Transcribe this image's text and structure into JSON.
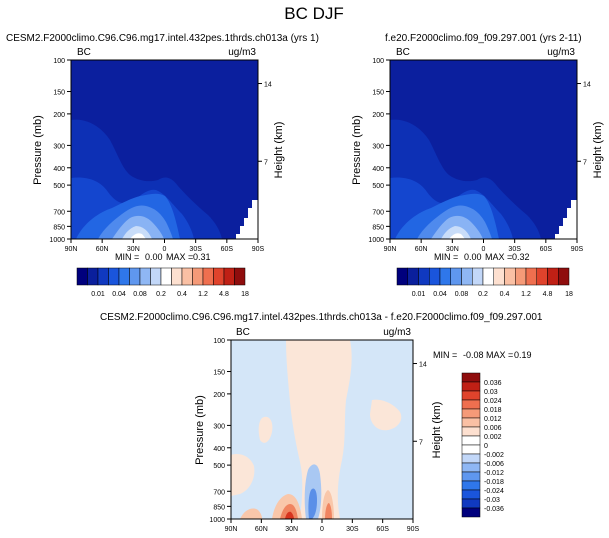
{
  "figure": {
    "title": "BC DJF"
  },
  "chart_data": [
    {
      "type": "heatmap",
      "title": "CESM2.F2000climo.C96.C96.mg17.intel.432pes.1thrds.ch013a (yrs 1)",
      "left_label": "BC",
      "right_label": "ug/m3",
      "xlabel": "",
      "ylabel": "Pressure (mb)",
      "y2label": "Height (km)",
      "x_ticks": [
        "90N",
        "60N",
        "30N",
        "0",
        "30S",
        "60S",
        "90S"
      ],
      "y_ticks": [
        "100",
        "150",
        "200",
        "300",
        "400",
        "500",
        "700",
        "850",
        "1000"
      ],
      "y2_ticks": [
        "14",
        "7"
      ],
      "stats": {
        "min_label": "MIN =",
        "min": "0.00",
        "max_label": "MAX =",
        "max": "0.31"
      },
      "ylim": [
        1000,
        100
      ],
      "xlim": [
        "90N",
        "90S"
      ]
    },
    {
      "type": "heatmap",
      "title": "f.e20.F2000climo.f09_f09.297.001 (yrs 2-11)",
      "left_label": "BC",
      "right_label": "ug/m3",
      "xlabel": "",
      "ylabel": "Pressure (mb)",
      "y2label": "Height (km)",
      "x_ticks": [
        "90N",
        "60N",
        "30N",
        "0",
        "30S",
        "60S",
        "90S"
      ],
      "y_ticks": [
        "100",
        "150",
        "200",
        "300",
        "400",
        "500",
        "700",
        "850",
        "1000"
      ],
      "y2_ticks": [
        "14",
        "7"
      ],
      "stats": {
        "min_label": "MIN =",
        "min": "0.00",
        "max_label": "MAX =",
        "max": "0.32"
      },
      "ylim": [
        1000,
        100
      ],
      "xlim": [
        "90N",
        "90S"
      ]
    },
    {
      "type": "heatmap",
      "title": "CESM2.F2000climo.C96.C96.mg17.intel.432pes.1thrds.ch013a - f.e20.F2000climo.f09_f09.297.001",
      "left_label": "BC",
      "right_label": "ug/m3",
      "xlabel": "",
      "ylabel": "Pressure (mb)",
      "y2label": "Height (km)",
      "x_ticks": [
        "90N",
        "60N",
        "30N",
        "0",
        "30S",
        "60S",
        "90S"
      ],
      "y_ticks": [
        "100",
        "150",
        "200",
        "300",
        "400",
        "500",
        "700",
        "850",
        "1000"
      ],
      "y2_ticks": [
        "14",
        "7"
      ],
      "stats": {
        "min_label": "MIN =",
        "min": "-0.08",
        "max_label": "MAX =",
        "max": "0.19"
      },
      "ylim": [
        1000,
        100
      ],
      "xlim": [
        "90N",
        "90S"
      ]
    }
  ],
  "colorbars": {
    "abs": {
      "labels": [
        "0.01",
        "0.04",
        "0.08",
        "0.2",
        "0.4",
        "1.2",
        "4.8",
        "18"
      ],
      "colors": [
        "#00007d",
        "#0a1f9c",
        "#1039c0",
        "#1a55dc",
        "#2f77ea",
        "#5f97ef",
        "#8fb7f4",
        "#c2d7f8",
        "#ffffff",
        "#fde0d0",
        "#fac0a4",
        "#f59a78",
        "#ef6f4f",
        "#e0432c",
        "#c02015",
        "#8f0d0d"
      ]
    },
    "diff": {
      "labels": [
        "0.036",
        "0.03",
        "0.024",
        "0.018",
        "0.012",
        "0.006",
        "0.002",
        "0",
        "-0.002",
        "-0.006",
        "-0.012",
        "-0.018",
        "-0.024",
        "-0.03",
        "-0.036"
      ],
      "colors": [
        "#8f0d0d",
        "#c02015",
        "#e0432c",
        "#ef6f4f",
        "#f59a78",
        "#fac0a4",
        "#fde0d0",
        "#ffffff",
        "#ffffff",
        "#c2d7f8",
        "#8fb7f4",
        "#5f97ef",
        "#2f77ea",
        "#1a55dc",
        "#1039c0",
        "#00007d"
      ]
    }
  },
  "field_colors": {
    "bg_abs": "#0b1f9e",
    "low1": "#0d30b5",
    "low2": "#1446cf",
    "mid1": "#2266e3",
    "mid2": "#4f8aed",
    "high1": "#89b3f4",
    "high2": "#c9ddf9",
    "peak": "#ffffff",
    "diff_bg": "#d4e6f8",
    "diff_pos": "#fbe6d8",
    "diff_pos2": "#f9c7aa",
    "diff_pos3": "#f08460",
    "diff_pos4": "#d8341f",
    "diff_neg2": "#a9c8f3",
    "diff_neg3": "#5a8fe8"
  }
}
